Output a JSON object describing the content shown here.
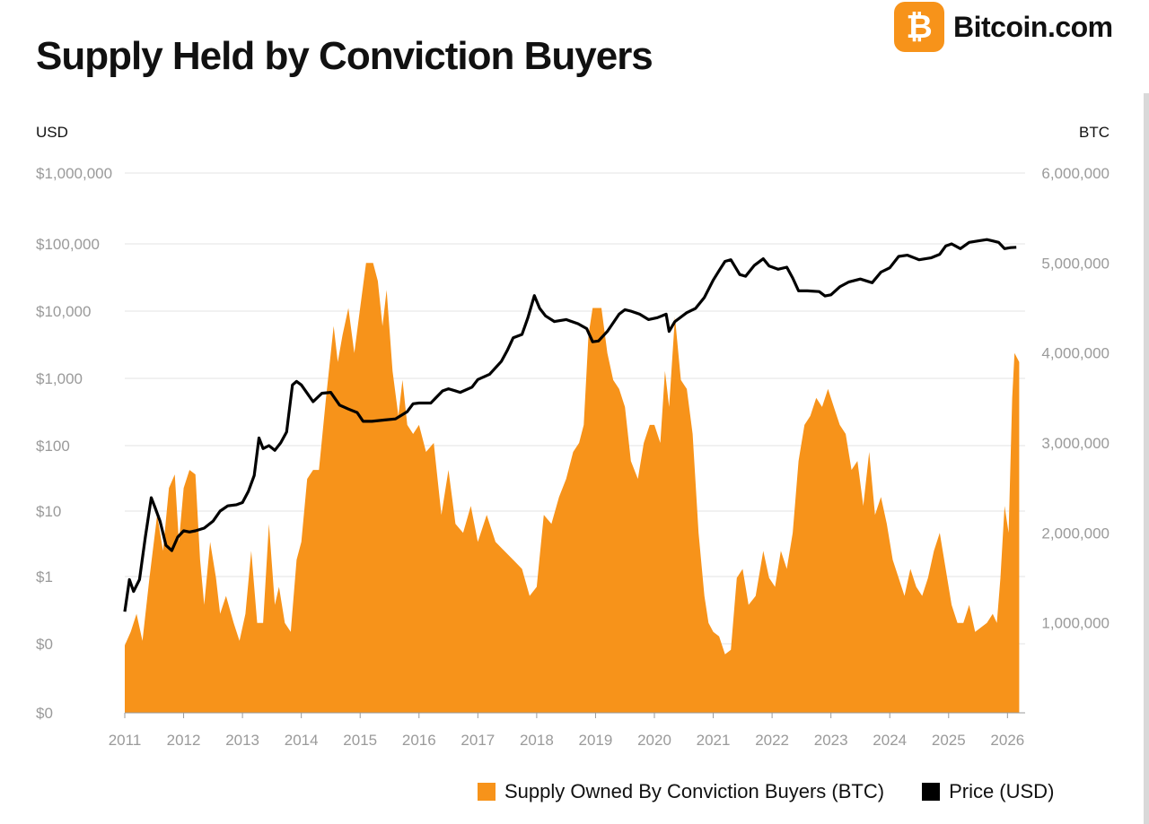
{
  "header": {
    "title": "Supply Held by Conviction Buyers",
    "brand_name": "Bitcoin.com",
    "brand_symbol": "₿",
    "brand_color": "#f7931a"
  },
  "legend": {
    "supply_label": "Supply Owned By Conviction Buyers (BTC)",
    "price_label": "Price (USD)"
  },
  "chart_data": {
    "type": "area",
    "title": "Supply Held by Conviction Buyers",
    "left_axis": {
      "unit": "USD",
      "scale": "log",
      "tick_labels": [
        "$0",
        "$0",
        "$1",
        "$10",
        "$100",
        "$1,000",
        "$10,000",
        "$100,000",
        "$1,000,000"
      ]
    },
    "right_axis": {
      "unit": "BTC",
      "scale": "linear",
      "ylim": [
        0,
        6000000
      ],
      "tick_labels": [
        "1,000,000",
        "2,000,000",
        "3,000,000",
        "4,000,000",
        "5,000,000",
        "6,000,000"
      ]
    },
    "x_axis": {
      "xlim": [
        2011,
        2026.3
      ],
      "tick_labels": [
        "2011",
        "2012",
        "2013",
        "2014",
        "2015",
        "2016",
        "2017",
        "2018",
        "2019",
        "2020",
        "2021",
        "2022",
        "2023",
        "2024",
        "2025",
        "2026"
      ]
    },
    "grid": true,
    "colors": {
      "supply": "#f7931a",
      "price": "#000000",
      "grid": "#e3e3e3"
    },
    "series": [
      {
        "name": "Supply Owned By Conviction Buyers (BTC)",
        "axis": "right",
        "x": [
          2011.0,
          2011.1,
          2011.2,
          2011.3,
          2011.42,
          2011.55,
          2011.65,
          2011.75,
          2011.85,
          2011.92,
          2012.0,
          2012.1,
          2012.2,
          2012.28,
          2012.35,
          2012.45,
          2012.55,
          2012.62,
          2012.72,
          2012.85,
          2012.95,
          2013.05,
          2013.15,
          2013.25,
          2013.35,
          2013.45,
          2013.55,
          2013.62,
          2013.72,
          2013.82,
          2013.92,
          2014.0,
          2014.1,
          2014.2,
          2014.3,
          2014.42,
          2014.55,
          2014.62,
          2014.7,
          2014.8,
          2014.9,
          2015.0,
          2015.1,
          2015.22,
          2015.3,
          2015.38,
          2015.45,
          2015.55,
          2015.65,
          2015.72,
          2015.8,
          2015.9,
          2016.0,
          2016.12,
          2016.25,
          2016.38,
          2016.5,
          2016.62,
          2016.75,
          2016.88,
          2017.0,
          2017.15,
          2017.3,
          2017.45,
          2017.6,
          2017.75,
          2017.88,
          2018.0,
          2018.12,
          2018.25,
          2018.38,
          2018.5,
          2018.62,
          2018.72,
          2018.8,
          2018.88,
          2018.95,
          2019.0,
          2019.1,
          2019.2,
          2019.3,
          2019.4,
          2019.5,
          2019.6,
          2019.72,
          2019.82,
          2019.92,
          2020.0,
          2020.1,
          2020.18,
          2020.25,
          2020.35,
          2020.45,
          2020.55,
          2020.65,
          2020.75,
          2020.85,
          2020.92,
          2021.0,
          2021.1,
          2021.2,
          2021.3,
          2021.4,
          2021.5,
          2021.6,
          2021.72,
          2021.85,
          2021.95,
          2022.05,
          2022.15,
          2022.25,
          2022.35,
          2022.45,
          2022.55,
          2022.65,
          2022.75,
          2022.85,
          2022.95,
          2023.05,
          2023.15,
          2023.25,
          2023.35,
          2023.45,
          2023.55,
          2023.65,
          2023.75,
          2023.85,
          2023.95,
          2024.05,
          2024.15,
          2024.25,
          2024.35,
          2024.45,
          2024.55,
          2024.65,
          2024.75,
          2024.85,
          2024.95,
          2025.05,
          2025.15,
          2025.25,
          2025.35,
          2025.45,
          2025.55,
          2025.65,
          2025.75,
          2025.82,
          2025.88,
          2025.95,
          2026.02,
          2026.08,
          2026.12,
          2026.2
        ],
        "values": [
          750000,
          900000,
          1100000,
          800000,
          1500000,
          2200000,
          1800000,
          2500000,
          2650000,
          1900000,
          2500000,
          2700000,
          2650000,
          1700000,
          1200000,
          1900000,
          1500000,
          1100000,
          1300000,
          1000000,
          800000,
          1100000,
          1800000,
          1000000,
          1000000,
          2100000,
          1200000,
          1400000,
          1000000,
          900000,
          1700000,
          1900000,
          2600000,
          2700000,
          2700000,
          3500000,
          4300000,
          3900000,
          4200000,
          4500000,
          4000000,
          4500000,
          5000000,
          5000000,
          4800000,
          4300000,
          4700000,
          3800000,
          3300000,
          3700000,
          3200000,
          3100000,
          3200000,
          2900000,
          3000000,
          2200000,
          2700000,
          2100000,
          2000000,
          2300000,
          1900000,
          2200000,
          1900000,
          1800000,
          1700000,
          1600000,
          1300000,
          1400000,
          2200000,
          2100000,
          2400000,
          2600000,
          2900000,
          3000000,
          3200000,
          4200000,
          4500000,
          4500000,
          4500000,
          4000000,
          3700000,
          3600000,
          3400000,
          2800000,
          2600000,
          3000000,
          3200000,
          3200000,
          3000000,
          3800000,
          3400000,
          4400000,
          3700000,
          3600000,
          3100000,
          2000000,
          1300000,
          1000000,
          900000,
          850000,
          650000,
          700000,
          1500000,
          1600000,
          1200000,
          1300000,
          1800000,
          1500000,
          1400000,
          1800000,
          1600000,
          2000000,
          2800000,
          3200000,
          3300000,
          3500000,
          3400000,
          3600000,
          3400000,
          3200000,
          3100000,
          2700000,
          2800000,
          2300000,
          2900000,
          2200000,
          2400000,
          2100000,
          1700000,
          1500000,
          1300000,
          1600000,
          1400000,
          1300000,
          1500000,
          1800000,
          2000000,
          1600000,
          1200000,
          1000000,
          1000000,
          1200000,
          900000,
          950000,
          1000000,
          1100000,
          1000000,
          1500000,
          2300000,
          2000000,
          3500000,
          4000000,
          3900000
        ]
      },
      {
        "name": "Price (USD)",
        "axis": "left",
        "x": [
          2011.0,
          2011.08,
          2011.15,
          2011.25,
          2011.35,
          2011.45,
          2011.52,
          2011.6,
          2011.7,
          2011.8,
          2011.9,
          2012.0,
          2012.1,
          2012.2,
          2012.35,
          2012.5,
          2012.62,
          2012.75,
          2012.9,
          2013.0,
          2013.1,
          2013.2,
          2013.28,
          2013.35,
          2013.45,
          2013.55,
          2013.65,
          2013.75,
          2013.85,
          2013.92,
          2014.0,
          2014.1,
          2014.2,
          2014.35,
          2014.5,
          2014.65,
          2014.8,
          2014.95,
          2015.05,
          2015.2,
          2015.4,
          2015.6,
          2015.8,
          2015.9,
          2016.0,
          2016.2,
          2016.4,
          2016.5,
          2016.7,
          2016.9,
          2017.0,
          2017.2,
          2017.4,
          2017.5,
          2017.6,
          2017.75,
          2017.85,
          2017.96,
          2018.05,
          2018.15,
          2018.3,
          2018.5,
          2018.7,
          2018.85,
          2018.95,
          2019.05,
          2019.2,
          2019.4,
          2019.5,
          2019.6,
          2019.75,
          2019.9,
          2020.05,
          2020.2,
          2020.25,
          2020.35,
          2020.55,
          2020.7,
          2020.85,
          2021.0,
          2021.1,
          2021.2,
          2021.3,
          2021.45,
          2021.55,
          2021.7,
          2021.85,
          2021.95,
          2022.1,
          2022.25,
          2022.35,
          2022.45,
          2022.6,
          2022.8,
          2022.9,
          2023.0,
          2023.15,
          2023.3,
          2023.5,
          2023.7,
          2023.85,
          2024.0,
          2024.15,
          2024.3,
          2024.5,
          2024.7,
          2024.85,
          2024.95,
          2025.05,
          2025.2,
          2025.35,
          2025.5,
          2025.65,
          2025.75,
          2025.85,
          2025.95,
          2026.05,
          2026.15
        ],
        "values": [
          0.3,
          0.9,
          0.6,
          0.9,
          4,
          16,
          11,
          7,
          3,
          2.5,
          4,
          5,
          4.8,
          5,
          5.5,
          7,
          10,
          12,
          12.5,
          13.5,
          20,
          35,
          130,
          90,
          100,
          85,
          110,
          160,
          800,
          900,
          800,
          600,
          450,
          600,
          620,
          400,
          350,
          310,
          230,
          230,
          240,
          250,
          320,
          420,
          430,
          430,
          650,
          700,
          620,
          740,
          960,
          1150,
          1800,
          2600,
          4000,
          4500,
          8000,
          17000,
          11000,
          8500,
          7000,
          7500,
          6500,
          5500,
          3500,
          3600,
          5000,
          9000,
          10500,
          10000,
          9000,
          7500,
          8000,
          9000,
          5000,
          7000,
          9500,
          11000,
          16000,
          29000,
          40000,
          55000,
          58000,
          35000,
          33000,
          48000,
          60000,
          47000,
          42000,
          45000,
          31000,
          20000,
          20000,
          19500,
          16800,
          17500,
          23000,
          27000,
          30000,
          26500,
          38000,
          44000,
          65000,
          68000,
          58000,
          62000,
          70000,
          93000,
          100000,
          85000,
          105000,
          110000,
          115000,
          110000,
          105000,
          85000,
          88000,
          89000
        ]
      }
    ]
  }
}
